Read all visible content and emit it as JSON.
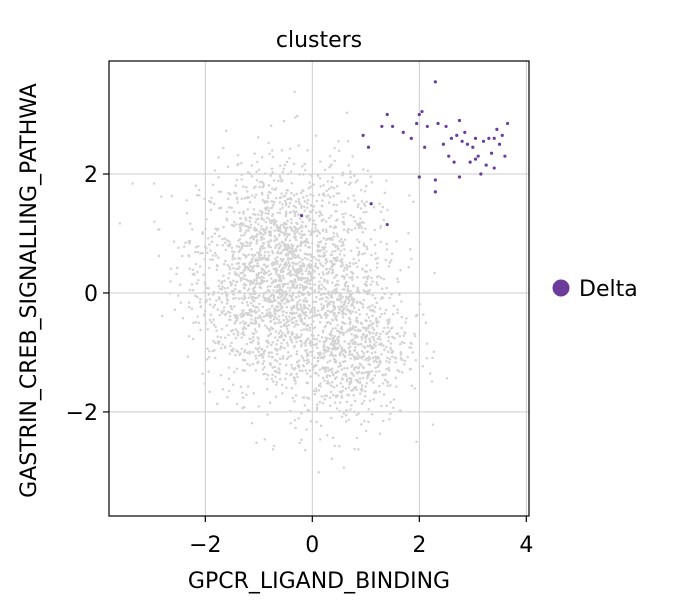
{
  "chart_data": {
    "type": "scatter",
    "title": "clusters",
    "xlabel": "GPCR_LIGAND_BINDING",
    "ylabel": "GASTRIN_CREB_SIGNALLING_PATHWA",
    "xlim": [
      -3.8,
      4.05
    ],
    "ylim": [
      -3.75,
      3.9
    ],
    "xticks": [
      -2,
      0,
      2,
      4
    ],
    "yticks": [
      -2,
      0,
      2
    ],
    "xtick_labels": [
      "−2",
      "0",
      "2",
      "4"
    ],
    "ytick_labels": [
      "−2",
      "0",
      "2"
    ],
    "grid": true,
    "legend": {
      "placement": "right",
      "entries": [
        "Delta"
      ]
    },
    "colors": {
      "background": "#d3d3d3",
      "Delta": "#6a3d9a",
      "grid": "#cccccc"
    },
    "series": [
      {
        "name": "Delta",
        "color": "#6a3d9a",
        "points": [
          [
            0.95,
            2.65
          ],
          [
            1.05,
            2.45
          ],
          [
            1.3,
            2.8
          ],
          [
            1.4,
            3.0
          ],
          [
            1.5,
            2.8
          ],
          [
            1.7,
            2.7
          ],
          [
            1.85,
            2.6
          ],
          [
            1.95,
            2.85
          ],
          [
            2.05,
            3.05
          ],
          [
            2.15,
            2.8
          ],
          [
            2.3,
            3.55
          ],
          [
            2.3,
            1.7
          ],
          [
            2.35,
            2.85
          ],
          [
            2.45,
            2.5
          ],
          [
            2.5,
            2.8
          ],
          [
            2.55,
            2.3
          ],
          [
            2.6,
            2.6
          ],
          [
            2.65,
            2.2
          ],
          [
            2.7,
            2.65
          ],
          [
            2.75,
            2.9
          ],
          [
            2.8,
            2.55
          ],
          [
            2.85,
            2.7
          ],
          [
            2.9,
            2.5
          ],
          [
            2.95,
            2.2
          ],
          [
            3.0,
            2.45
          ],
          [
            3.05,
            2.6
          ],
          [
            3.1,
            2.3
          ],
          [
            3.15,
            2.0
          ],
          [
            3.2,
            2.55
          ],
          [
            3.25,
            2.15
          ],
          [
            3.3,
            2.6
          ],
          [
            3.35,
            2.35
          ],
          [
            3.4,
            2.1
          ],
          [
            3.45,
            2.75
          ],
          [
            3.5,
            2.5
          ],
          [
            3.55,
            2.65
          ],
          [
            3.6,
            2.3
          ],
          [
            3.65,
            2.85
          ],
          [
            1.1,
            1.5
          ],
          [
            1.4,
            1.15
          ],
          [
            2.0,
            1.95
          ],
          [
            2.3,
            1.9
          ],
          [
            2.1,
            2.45
          ],
          [
            2.75,
            1.95
          ],
          [
            2.0,
            3.0
          ],
          [
            3.05,
            2.25
          ],
          [
            3.4,
            2.6
          ],
          [
            -0.2,
            1.3
          ]
        ]
      }
    ]
  }
}
